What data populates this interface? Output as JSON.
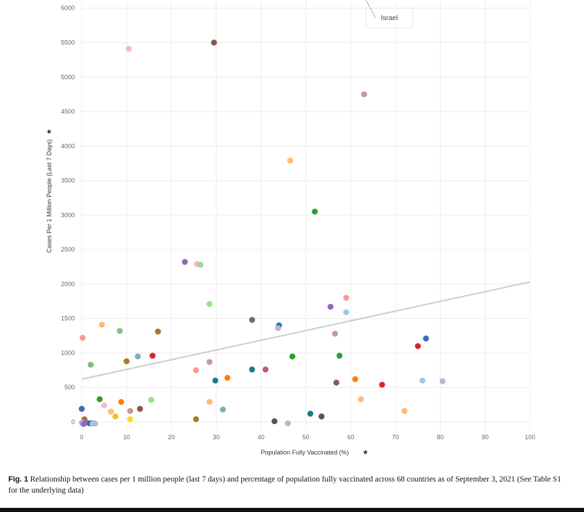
{
  "caption": {
    "label": "Fig. 1",
    "text": "Relationship between cases per 1 million people (last 7 days) and percentage of population fully vaccinated across 68 countries as of September 3, 2021 (See Table S1 for the underlying data)"
  },
  "chart_data": {
    "type": "scatter",
    "title": "",
    "xlabel": "Population Fully Vaccinated (%)",
    "ylabel": "Cases Per 1 Million People (Last 7 Days)",
    "axis_icon": "pin-icon",
    "xlim": [
      0,
      100
    ],
    "ylim": [
      -50,
      6200
    ],
    "xticks": [
      0,
      10,
      20,
      30,
      40,
      50,
      60,
      70,
      80,
      90,
      100
    ],
    "yticks": [
      0,
      500,
      1000,
      1500,
      2000,
      2500,
      3000,
      3500,
      4000,
      4500,
      5000,
      5500,
      6000
    ],
    "grid": true,
    "trendline": {
      "x": [
        0,
        100
      ],
      "y": [
        620,
        2030
      ],
      "color": "#cccccc"
    },
    "annotation": {
      "text": "Israel",
      "x": 62.5,
      "y": 6230
    },
    "points": [
      {
        "x": 62.5,
        "y": 6230,
        "color": "#a6cee3"
      },
      {
        "x": 29.5,
        "y": 5500,
        "color": "#8c564b"
      },
      {
        "x": 10.5,
        "y": 5410,
        "color": "#f7b6d2"
      },
      {
        "x": 63.0,
        "y": 4750,
        "color": "#c49c94"
      },
      {
        "x": 46.5,
        "y": 3790,
        "color": "#ffbb78"
      },
      {
        "x": 52.0,
        "y": 3050,
        "color": "#2ca02c"
      },
      {
        "x": 23.0,
        "y": 2320,
        "color": "#9467bd"
      },
      {
        "x": 25.7,
        "y": 2290,
        "color": "#f7b6d2"
      },
      {
        "x": 26.5,
        "y": 2280,
        "color": "#98df8a"
      },
      {
        "x": 28.5,
        "y": 1710,
        "color": "#98df8a"
      },
      {
        "x": 59.0,
        "y": 1800,
        "color": "#ff9896"
      },
      {
        "x": 55.5,
        "y": 1670,
        "color": "#9467bd"
      },
      {
        "x": 59.0,
        "y": 1590,
        "color": "#9ecae1"
      },
      {
        "x": 38.0,
        "y": 1480,
        "color": "#7f6a5a"
      },
      {
        "x": 44.0,
        "y": 1400,
        "color": "#1f77b4"
      },
      {
        "x": 43.8,
        "y": 1360,
        "color": "#c5b0d5"
      },
      {
        "x": 56.5,
        "y": 1280,
        "color": "#c49c94"
      },
      {
        "x": 4.5,
        "y": 1410,
        "color": "#ffbb78"
      },
      {
        "x": 8.5,
        "y": 1320,
        "color": "#8fbc8f"
      },
      {
        "x": 17.0,
        "y": 1310,
        "color": "#a07a2a"
      },
      {
        "x": 0.2,
        "y": 1220,
        "color": "#ff9896"
      },
      {
        "x": 76.8,
        "y": 1210,
        "color": "#3a6fb0"
      },
      {
        "x": 75.0,
        "y": 1100,
        "color": "#d62728"
      },
      {
        "x": 15.8,
        "y": 960,
        "color": "#d62728"
      },
      {
        "x": 12.5,
        "y": 950,
        "color": "#76b7b2"
      },
      {
        "x": 47.0,
        "y": 950,
        "color": "#2ca02c"
      },
      {
        "x": 57.5,
        "y": 960,
        "color": "#2ca02c"
      },
      {
        "x": 10.0,
        "y": 880,
        "color": "#a08020"
      },
      {
        "x": 28.5,
        "y": 870,
        "color": "#c49c94"
      },
      {
        "x": 2.0,
        "y": 830,
        "color": "#77c177"
      },
      {
        "x": 38.0,
        "y": 760,
        "color": "#17807e"
      },
      {
        "x": 41.0,
        "y": 760,
        "color": "#c5577e"
      },
      {
        "x": 25.5,
        "y": 750,
        "color": "#ff9896"
      },
      {
        "x": 32.5,
        "y": 640,
        "color": "#ff7f0e"
      },
      {
        "x": 61.0,
        "y": 620,
        "color": "#ff7f0e"
      },
      {
        "x": 29.8,
        "y": 600,
        "color": "#17807e"
      },
      {
        "x": 56.8,
        "y": 570,
        "color": "#8c564b"
      },
      {
        "x": 76.0,
        "y": 600,
        "color": "#9ecae1"
      },
      {
        "x": 80.5,
        "y": 590,
        "color": "#c5b0d5"
      },
      {
        "x": 67.0,
        "y": 540,
        "color": "#d62728"
      },
      {
        "x": 4.0,
        "y": 330,
        "color": "#2ca02c"
      },
      {
        "x": 15.5,
        "y": 320,
        "color": "#98df8a"
      },
      {
        "x": 28.5,
        "y": 290,
        "color": "#ffbb78"
      },
      {
        "x": 8.8,
        "y": 290,
        "color": "#ff7f0e"
      },
      {
        "x": 62.3,
        "y": 330,
        "color": "#ffbb78"
      },
      {
        "x": 5.0,
        "y": 240,
        "color": "#f7b6d2"
      },
      {
        "x": 13.0,
        "y": 190,
        "color": "#8c564b"
      },
      {
        "x": 0.0,
        "y": 190,
        "color": "#3a6fb0"
      },
      {
        "x": 31.5,
        "y": 180,
        "color": "#76b7b2"
      },
      {
        "x": 10.8,
        "y": 160,
        "color": "#c49c94"
      },
      {
        "x": 6.5,
        "y": 150,
        "color": "#ffbb78"
      },
      {
        "x": 72.0,
        "y": 160,
        "color": "#ffbb78"
      },
      {
        "x": 51.0,
        "y": 120,
        "color": "#17807e"
      },
      {
        "x": 53.5,
        "y": 80,
        "color": "#555555"
      },
      {
        "x": 7.5,
        "y": 80,
        "color": "#e6c229"
      },
      {
        "x": 10.8,
        "y": 40,
        "color": "#ffd633"
      },
      {
        "x": 25.5,
        "y": 40,
        "color": "#a08020"
      },
      {
        "x": 0.6,
        "y": 40,
        "color": "#a08020"
      },
      {
        "x": 43.0,
        "y": 10,
        "color": "#555555"
      },
      {
        "x": 46.0,
        "y": -20,
        "color": "#c5b0d5"
      },
      {
        "x": 0.0,
        "y": -10,
        "color": "#c5b0d5"
      },
      {
        "x": 1.0,
        "y": -10,
        "color": "#9467bd"
      },
      {
        "x": 1.8,
        "y": -20,
        "color": "#1f77b4"
      },
      {
        "x": 2.2,
        "y": -20,
        "color": "#2b5d8c"
      },
      {
        "x": 2.6,
        "y": -20,
        "color": "#1f77b4"
      },
      {
        "x": 2.4,
        "y": -25,
        "color": "#9ecae1"
      },
      {
        "x": 3.0,
        "y": -25,
        "color": "#c5b0d5"
      },
      {
        "x": 0.4,
        "y": -30,
        "color": "#9467bd"
      }
    ]
  }
}
